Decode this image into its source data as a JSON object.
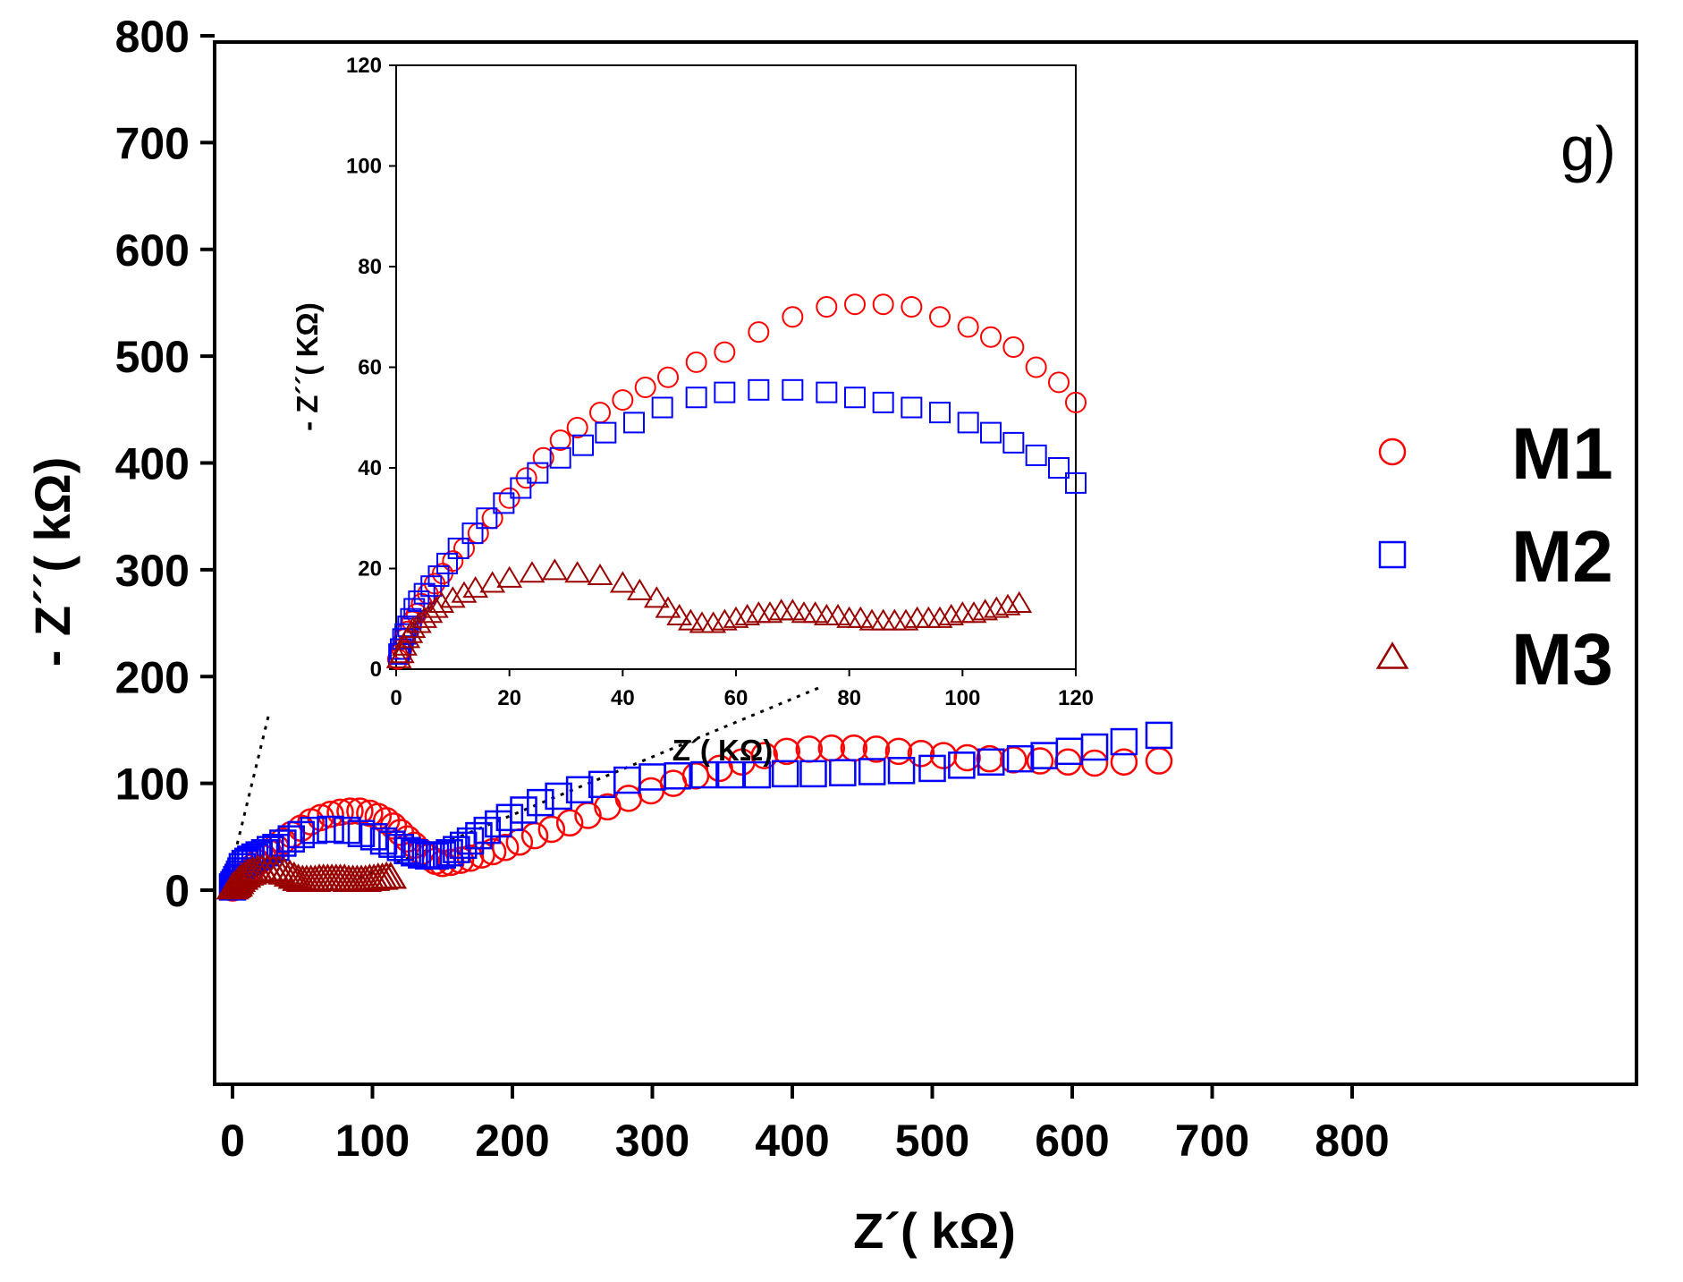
{
  "chart_data": [
    {
      "type": "scatter",
      "title": "",
      "panel_label": "g)",
      "xlabel": "Z´( kΩ)",
      "ylabel": "- Z´´( kΩ)",
      "xlim": [
        -25,
        800
      ],
      "ylim": [
        -10,
        800
      ],
      "xticks": [
        "0",
        "100",
        "200",
        "300",
        "400",
        "500",
        "600",
        "700",
        "800"
      ],
      "yticks": [
        "0",
        "100",
        "200",
        "300",
        "400",
        "500",
        "600",
        "700",
        "800"
      ],
      "legend_placement": "right",
      "series": [
        {
          "name": "M1",
          "marker": "circle",
          "color": "#ff0000",
          "x": [
            0,
            1,
            2,
            3,
            5,
            7,
            9,
            12,
            15,
            18,
            22,
            26,
            31,
            36,
            42,
            49,
            56,
            63,
            70,
            77,
            84,
            91,
            98,
            104,
            110,
            115,
            120,
            125,
            130,
            135,
            140,
            145,
            150,
            156,
            163,
            170,
            178,
            186,
            195,
            205,
            216,
            228,
            241,
            254,
            268,
            283,
            299,
            315,
            331,
            348,
            364,
            380,
            396,
            412,
            428,
            444,
            460,
            476,
            492,
            508,
            525,
            541,
            558,
            577,
            597,
            616,
            637,
            662
          ],
          "y": [
            2,
            3,
            5,
            7,
            9,
            12,
            15,
            18,
            22,
            26,
            30,
            35,
            40,
            46,
            52,
            58,
            64,
            68,
            71,
            73,
            74,
            74,
            72,
            69,
            65,
            60,
            54,
            48,
            42,
            36,
            31,
            27,
            25,
            26,
            28,
            30,
            33,
            36,
            40,
            45,
            51,
            57,
            63,
            70,
            78,
            86,
            93,
            100,
            107,
            114,
            120,
            126,
            130,
            132,
            133,
            133,
            132,
            130,
            128,
            126,
            124,
            123,
            122,
            121,
            120,
            119,
            120,
            121
          ]
        },
        {
          "name": "M2",
          "marker": "square",
          "color": "#0000ff",
          "x": [
            0,
            1,
            2,
            3,
            4,
            5,
            6,
            7,
            9,
            11,
            13,
            16,
            19,
            23,
            27,
            31,
            36,
            42,
            49,
            58,
            70,
            82,
            92,
            101,
            108,
            114,
            120,
            125,
            130,
            135,
            140,
            145,
            150,
            155,
            160,
            165,
            170,
            176,
            182,
            190,
            198,
            208,
            220,
            233,
            248,
            264,
            282,
            300,
            318,
            337,
            356,
            375,
            395,
            415,
            436,
            457,
            478,
            500,
            521,
            542,
            563,
            580,
            598,
            616,
            637,
            662
          ],
          "y": [
            3,
            5,
            7,
            10,
            12,
            15,
            18,
            22,
            25,
            27,
            29,
            31,
            33,
            35,
            38,
            40,
            44,
            48,
            52,
            56,
            57,
            56,
            53,
            50,
            46,
            43,
            40,
            37,
            35,
            33,
            32,
            32,
            33,
            35,
            38,
            42,
            46,
            51,
            56,
            62,
            68,
            75,
            82,
            88,
            94,
            99,
            103,
            106,
            107,
            108,
            108,
            108,
            109,
            109,
            110,
            111,
            112,
            114,
            117,
            120,
            123,
            126,
            130,
            134,
            139,
            145
          ]
        },
        {
          "name": "M3",
          "marker": "triangle",
          "color": "#990000",
          "x": [
            0,
            1,
            2,
            3,
            4,
            5,
            7,
            9,
            11,
            13,
            15,
            18,
            21,
            25,
            29,
            33,
            37,
            41,
            44,
            47,
            50,
            53,
            56,
            59,
            62,
            65,
            68,
            71,
            74,
            77,
            80,
            83,
            86,
            89,
            92,
            95,
            98,
            101,
            104,
            107,
            110,
            113
          ],
          "y": [
            2,
            3,
            4,
            5,
            7,
            9,
            11,
            13,
            15,
            16,
            17,
            18,
            19,
            19,
            19,
            18,
            16,
            14,
            12,
            10,
            9,
            9,
            9,
            9,
            10,
            10,
            10,
            10,
            10,
            10,
            10,
            9,
            9,
            9,
            9,
            9,
            10,
            10,
            11,
            11,
            12,
            12
          ]
        }
      ]
    },
    {
      "type": "scatter",
      "title": "",
      "xlabel": "Z´( KΩ)",
      "ylabel": "- Z´´( KΩ)",
      "xlim": [
        0,
        120
      ],
      "ylim": [
        0,
        120
      ],
      "xticks": [
        "0",
        "20",
        "40",
        "60",
        "80",
        "100",
        "120"
      ],
      "yticks": [
        "0",
        "20",
        "40",
        "60",
        "80",
        "100",
        "120"
      ],
      "series": [
        {
          "name": "M1",
          "marker": "circle",
          "color": "#ff0000",
          "x": [
            0.3,
            0.6,
            1,
            1.5,
            2,
            2.8,
            3.6,
            4.5,
            5.6,
            6.8,
            8.2,
            10,
            12,
            14.5,
            17,
            20,
            23,
            26,
            29,
            32,
            36,
            40,
            44,
            48,
            53,
            58,
            64,
            70,
            76,
            81,
            86,
            91,
            96,
            101,
            105,
            109,
            113,
            117,
            120
          ],
          "y": [
            2,
            3,
            4,
            6,
            7.5,
            9.5,
            11,
            13,
            15,
            17,
            19,
            21.5,
            24,
            27,
            30,
            34,
            38,
            42,
            45.5,
            48,
            51,
            53.5,
            56,
            58,
            61,
            63,
            67,
            70,
            72,
            72.5,
            72.5,
            72,
            70,
            68,
            66,
            64,
            60,
            57,
            53
          ]
        },
        {
          "name": "M2",
          "marker": "square",
          "color": "#0000ff",
          "x": [
            0.5,
            0.8,
            1.2,
            1.6,
            2.1,
            2.6,
            3.2,
            4,
            5,
            6.2,
            7.5,
            9,
            11,
            13.5,
            16,
            19,
            22,
            25,
            29,
            33,
            37,
            42,
            47,
            53,
            58,
            64,
            70,
            76,
            81,
            86,
            91,
            96,
            101,
            105,
            109,
            113,
            117,
            120
          ],
          "y": [
            3,
            4,
            6,
            7,
            8.5,
            10,
            12,
            13.5,
            15,
            16.5,
            18.5,
            21,
            24,
            27,
            30,
            33,
            36,
            39,
            42,
            44.5,
            47,
            49,
            52,
            54,
            55,
            55.5,
            55.5,
            55,
            54,
            53,
            52,
            51,
            49,
            47,
            45,
            42.5,
            40,
            37
          ]
        },
        {
          "name": "M3",
          "marker": "triangle",
          "color": "#990000",
          "x": [
            0.5,
            1,
            1.5,
            2,
            2.5,
            3,
            4,
            5,
            6,
            7,
            8,
            10,
            12,
            14,
            17,
            20,
            24,
            28,
            32,
            36,
            40,
            43,
            46,
            48,
            50,
            52,
            54,
            56,
            58,
            60,
            62,
            64,
            66,
            68,
            70,
            72,
            74,
            76,
            78,
            80,
            82,
            84,
            86,
            88,
            90,
            92,
            94,
            96,
            98,
            100,
            102,
            104,
            106,
            108,
            110
          ],
          "y": [
            2,
            3,
            4.5,
            6,
            7,
            8,
            9,
            10,
            11,
            12,
            13,
            14,
            15,
            16,
            17,
            18,
            19,
            19.5,
            19,
            18.5,
            17,
            15.5,
            14,
            12,
            10.5,
            9.5,
            9,
            9,
            9.5,
            10,
            10.5,
            11,
            11,
            11.5,
            11.5,
            11,
            11,
            10.5,
            10.5,
            10,
            10,
            9.5,
            9.5,
            9.5,
            9.5,
            10,
            10,
            10,
            10.5,
            11,
            11,
            11.5,
            12,
            12.5,
            13
          ]
        }
      ]
    }
  ],
  "legend": {
    "entries": [
      {
        "label": "M1",
        "marker": "circle",
        "color": "#ff0000"
      },
      {
        "label": "M2",
        "marker": "square",
        "color": "#0000ff"
      },
      {
        "label": "M3",
        "marker": "triangle",
        "color": "#990000"
      }
    ]
  },
  "guide_lines": [
    {
      "style": "dotted",
      "x": [
        0,
        26
      ],
      "y": [
        25,
        165
      ]
    },
    {
      "style": "dotted",
      "x": [
        85,
        420
      ],
      "y": [
        8,
        190
      ]
    }
  ]
}
